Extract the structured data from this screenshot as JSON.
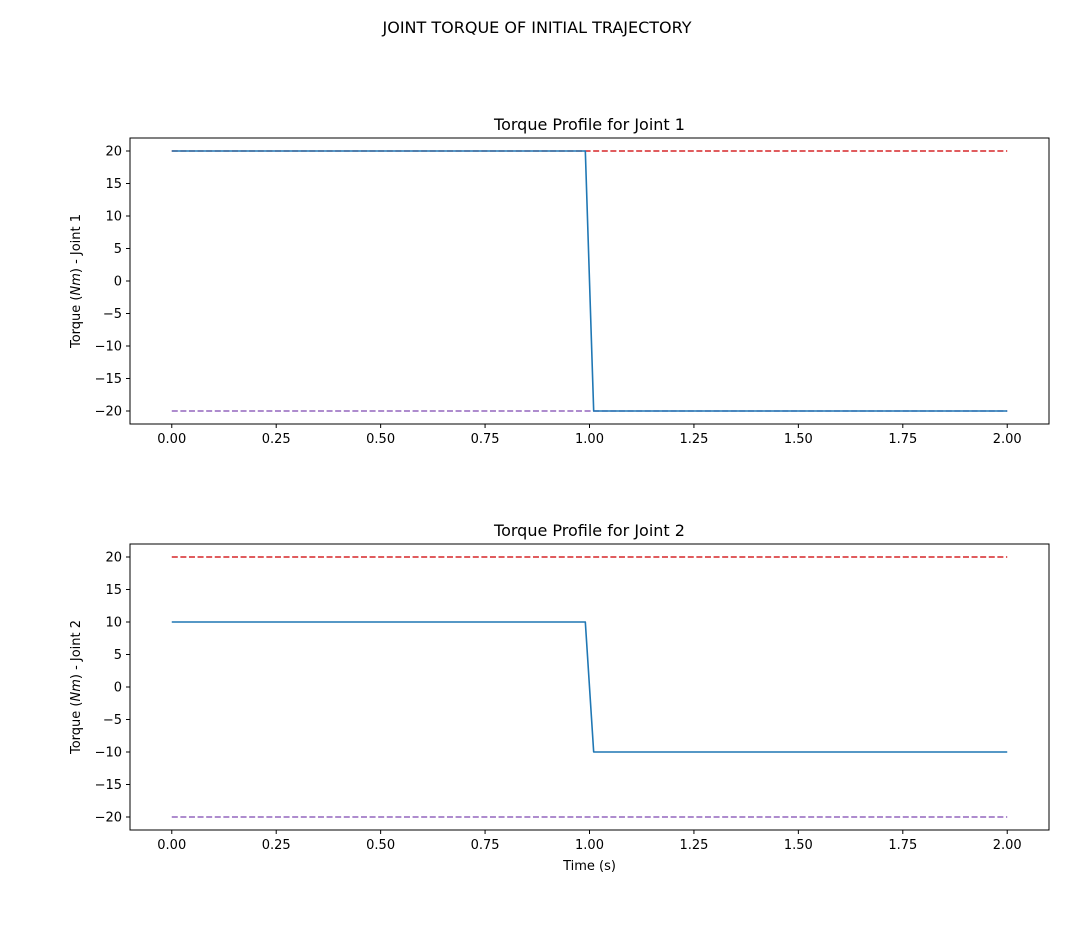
{
  "figure": {
    "suptitle": "JOINT TORQUE OF INITIAL TRAJECTORY"
  },
  "colors": {
    "torque": "#1f77b4",
    "upper_limit": "#d62728",
    "lower_limit": "#9467bd"
  },
  "chart_data": [
    {
      "type": "line",
      "title": "Torque Profile for Joint 1",
      "xlabel": "",
      "ylabel_parts": [
        "Torque (",
        "Nm",
        ") - Joint 1"
      ],
      "xlim": [
        -0.1,
        2.1
      ],
      "ylim": [
        -22,
        22
      ],
      "xticks": [
        0.0,
        0.25,
        0.5,
        0.75,
        1.0,
        1.25,
        1.5,
        1.75,
        2.0
      ],
      "xtick_labels": [
        "0.00",
        "0.25",
        "0.50",
        "0.75",
        "1.00",
        "1.25",
        "1.50",
        "1.75",
        "2.00"
      ],
      "yticks": [
        20,
        15,
        10,
        5,
        0,
        -5,
        -10,
        -15,
        -20
      ],
      "ytick_labels": [
        "20",
        "15",
        "10",
        "5",
        "0",
        "−5",
        "−10",
        "−15",
        "−20"
      ],
      "grid": false,
      "series": [
        {
          "key": "torque",
          "style": "solid",
          "x": [
            0.0,
            0.99,
            1.01,
            2.0
          ],
          "y": [
            20,
            20,
            -20,
            -20
          ]
        },
        {
          "key": "upper_limit",
          "style": "dashed",
          "x": [
            0.0,
            2.0
          ],
          "y": [
            20,
            20
          ]
        },
        {
          "key": "lower_limit",
          "style": "dashed",
          "x": [
            0.0,
            2.0
          ],
          "y": [
            -20,
            -20
          ]
        }
      ]
    },
    {
      "type": "line",
      "title": "Torque Profile for Joint 2",
      "xlabel": "Time (s)",
      "ylabel_parts": [
        "Torque (",
        "Nm",
        ") - Joint 2"
      ],
      "xlim": [
        -0.1,
        2.1
      ],
      "ylim": [
        -22,
        22
      ],
      "xticks": [
        0.0,
        0.25,
        0.5,
        0.75,
        1.0,
        1.25,
        1.5,
        1.75,
        2.0
      ],
      "xtick_labels": [
        "0.00",
        "0.25",
        "0.50",
        "0.75",
        "1.00",
        "1.25",
        "1.50",
        "1.75",
        "2.00"
      ],
      "yticks": [
        20,
        15,
        10,
        5,
        0,
        -5,
        -10,
        -15,
        -20
      ],
      "ytick_labels": [
        "20",
        "15",
        "10",
        "5",
        "0",
        "−5",
        "−10",
        "−15",
        "−20"
      ],
      "grid": false,
      "series": [
        {
          "key": "torque",
          "style": "solid",
          "x": [
            0.0,
            0.99,
            1.01,
            2.0
          ],
          "y": [
            10,
            10,
            -10,
            -10
          ]
        },
        {
          "key": "upper_limit",
          "style": "dashed",
          "x": [
            0.0,
            2.0
          ],
          "y": [
            20,
            20
          ]
        },
        {
          "key": "lower_limit",
          "style": "dashed",
          "x": [
            0.0,
            2.0
          ],
          "y": [
            -20,
            -20
          ]
        }
      ]
    }
  ]
}
